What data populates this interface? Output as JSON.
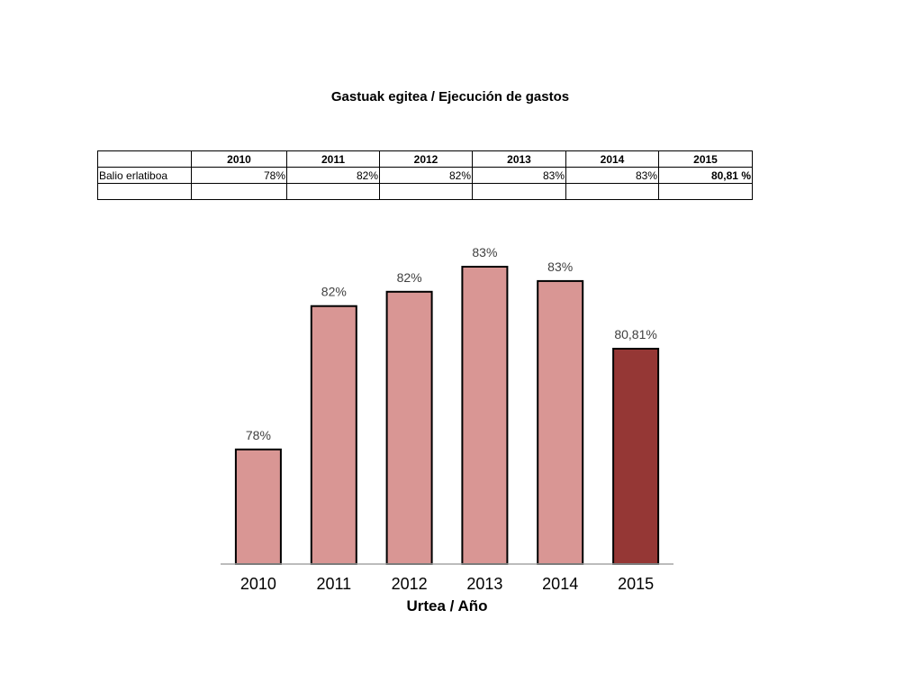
{
  "title": "Gastuak egitea / Ejecución de gastos",
  "table": {
    "years": [
      "2010",
      "2011",
      "2012",
      "2013",
      "2014",
      "2015"
    ],
    "row_label": "Balio erlatiboa",
    "values": [
      "78%",
      "82%",
      "82%",
      "83%",
      "83%",
      "80,81 %"
    ]
  },
  "chart_data": {
    "type": "bar",
    "categories": [
      "2010",
      "2011",
      "2012",
      "2013",
      "2014",
      "2015"
    ],
    "values": [
      78.0,
      82.0,
      82.4,
      83.1,
      82.7,
      80.81
    ],
    "data_labels": [
      "78%",
      "82%",
      "82%",
      "83%",
      "83%",
      "80,81%"
    ],
    "xlabel": "Urtea / Año",
    "ylabel": "",
    "ylim": [
      74.8,
      83.1
    ],
    "grid": false,
    "legend": "none",
    "colors": {
      "bar": "#d99694",
      "highlight": "#953735",
      "outline": "#000000",
      "axis": "#a6a6a6"
    },
    "highlight_index": 5
  }
}
